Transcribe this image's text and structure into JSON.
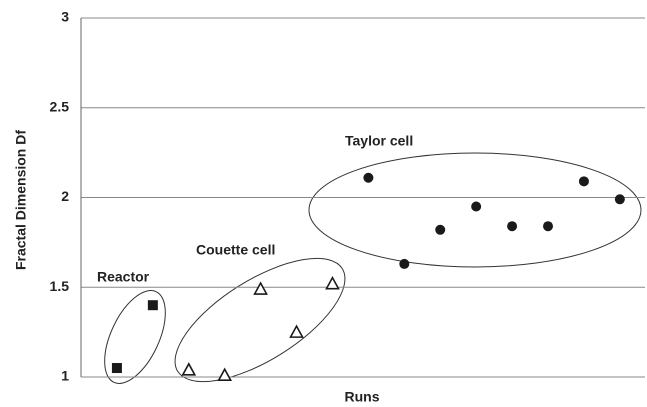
{
  "chart_data": {
    "type": "scatter",
    "y_label": "Fractal Dimension Df",
    "x_label": "Runs",
    "xlim": [
      0,
      15.7
    ],
    "ylim": [
      1,
      3
    ],
    "yticks": [
      1,
      1.5,
      2,
      2.5,
      3
    ],
    "grid": true,
    "series": [
      {
        "name": "Reactor",
        "color": "#1a1a1a",
        "marker": "square",
        "x": [
          1,
          2
        ],
        "values": [
          1.05,
          1.4
        ]
      },
      {
        "name": "Couette cell",
        "color": "#1a1a1a",
        "marker": "triangle",
        "x": [
          3,
          4,
          5,
          6,
          7
        ],
        "values": [
          1.04,
          1.01,
          1.49,
          1.25,
          1.52
        ]
      },
      {
        "name": "Taylor cell",
        "color": "#1a1a1a",
        "marker": "circle",
        "x": [
          8,
          9,
          10,
          11,
          12,
          13,
          14,
          15
        ],
        "values": [
          2.11,
          1.63,
          1.82,
          1.95,
          1.84,
          1.84,
          2.09,
          1.99
        ]
      }
    ]
  }
}
